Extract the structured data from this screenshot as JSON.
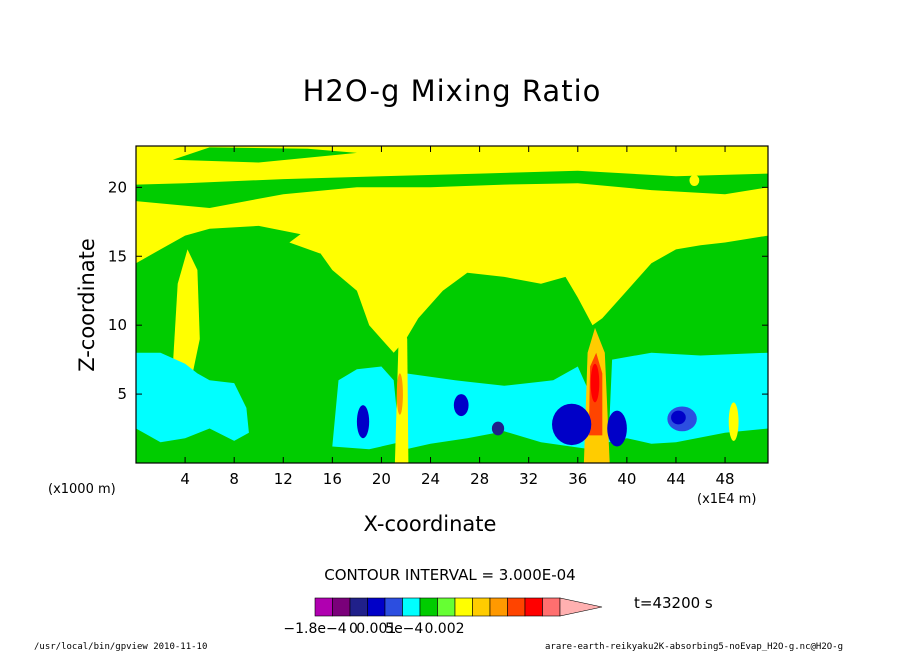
{
  "chart_data": {
    "type": "heatmap",
    "title": "H2O-g Mixing Ratio",
    "xlabel": "X-coordinate",
    "ylabel": "Z-coordinate",
    "x_unit_left": "(x1000 m)",
    "x_unit_right": "(x1E4 m)",
    "xlim": [
      0,
      51.5
    ],
    "ylim": [
      0,
      23
    ],
    "x_ticks": [
      4,
      8,
      12,
      16,
      20,
      24,
      28,
      32,
      36,
      40,
      44,
      48
    ],
    "y_ticks": [
      5,
      10,
      15,
      20
    ],
    "contour_interval": "CONTOUR INTERVAL = 3.000E-04",
    "time_label": "t=43200 s",
    "colorbar": {
      "colors": [
        "#b000b0",
        "#7a007a",
        "#20208a",
        "#0000c8",
        "#2c4ee0",
        "#00ffff",
        "#00cc00",
        "#66ff33",
        "#ffff00",
        "#ffcc00",
        "#ff9900",
        "#ff4400",
        "#ff0000",
        "#ff6f6f",
        "#ffb0b0"
      ],
      "labels": [
        {
          "text": "−1.8e−4",
          "index": 0
        },
        {
          "text": "0",
          "index": 2.2
        },
        {
          "text": "0.001",
          "index": 3.5
        },
        {
          "text": "5e−4",
          "index": 5.1
        },
        {
          "text": "0.002",
          "index": 7.4
        }
      ]
    }
  },
  "footer": {
    "left": "/usr/local/bin/gpview  2010-11-10",
    "right": "arare-earth-reikyaku2K-absorbing5-noEvap_H2O-g.nc@H2O-g"
  }
}
